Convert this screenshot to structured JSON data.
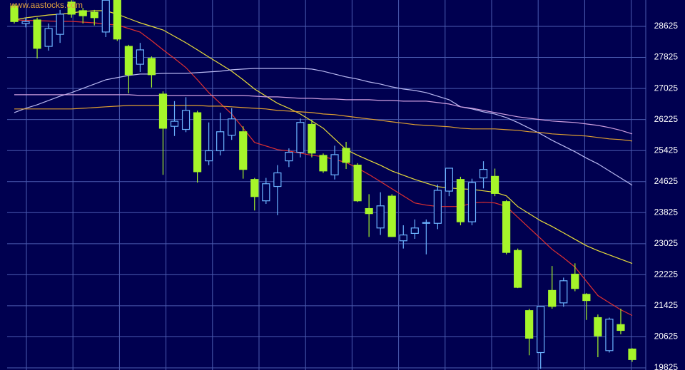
{
  "chart_data": {
    "type": "candlestick",
    "watermark": "www.aastocks.com",
    "categories": [
      null,
      null,
      null,
      null,
      null,
      null,
      null,
      null,
      null,
      null,
      null,
      null,
      null,
      null,
      null,
      null,
      null,
      null,
      null,
      null,
      null,
      null,
      null,
      null,
      null,
      null,
      null,
      null,
      null,
      null,
      null,
      null,
      null,
      null,
      null,
      null,
      null,
      null,
      null,
      null,
      null,
      null,
      null,
      null,
      null,
      null,
      null,
      null,
      null,
      null,
      null,
      null,
      null,
      null,
      null
    ],
    "open": [
      29150,
      28700,
      28790,
      28110,
      28420,
      29250,
      29030,
      28990,
      28480,
      29300,
      28110,
      27650,
      27800,
      26880,
      26050,
      25970,
      26400,
      25160,
      25420,
      25820,
      25910,
      24680,
      24130,
      24500,
      25160,
      25380,
      26100,
      25300,
      24800,
      25480,
      25050,
      23930,
      23430,
      24250,
      23100,
      23290,
      23550,
      23550,
      24380,
      24680,
      23590,
      24720,
      24760,
      24110,
      22850,
      21300,
      20220,
      21820,
      21500,
      22240,
      21720,
      21120,
      20270,
      20940,
      20310
    ],
    "high": [
      29200,
      28850,
      28850,
      28700,
      29050,
      29300,
      29100,
      29050,
      29300,
      29300,
      28150,
      28200,
      27850,
      26950,
      26700,
      26800,
      26450,
      26150,
      26400,
      26520,
      26050,
      24720,
      24720,
      25050,
      25480,
      26250,
      26220,
      25350,
      25550,
      25650,
      25100,
      24300,
      24350,
      24300,
      23500,
      23650,
      23650,
      24550,
      24980,
      24750,
      24700,
      25150,
      24960,
      24150,
      22900,
      21350,
      21420,
      22450,
      22150,
      22520,
      21750,
      21200,
      21120,
      21350,
      20330
    ],
    "low": [
      28700,
      28600,
      27800,
      28000,
      28200,
      28850,
      28700,
      28650,
      28350,
      28250,
      26900,
      27450,
      27050,
      24800,
      25800,
      25900,
      24600,
      25050,
      25300,
      25700,
      24700,
      23880,
      24050,
      23760,
      25000,
      25250,
      25250,
      24850,
      24680,
      24950,
      24100,
      23200,
      23250,
      23200,
      22900,
      23150,
      22750,
      23400,
      24250,
      23500,
      23500,
      24450,
      24250,
      22750,
      21880,
      20150,
      19800,
      21350,
      21400,
      21800,
      21060,
      20100,
      20220,
      20690,
      19980
    ],
    "close": [
      28750,
      28750,
      28060,
      28570,
      28940,
      28940,
      28900,
      28850,
      29300,
      28300,
      27380,
      28020,
      27380,
      26000,
      26180,
      26460,
      24880,
      25420,
      25910,
      26240,
      24940,
      24240,
      24570,
      24850,
      25380,
      26150,
      25360,
      24900,
      25320,
      25120,
      24130,
      23800,
      24000,
      23210,
      23250,
      23430,
      23570,
      24400,
      24970,
      23590,
      24600,
      24940,
      24320,
      22800,
      21900,
      20590,
      21410,
      21410,
      22070,
      21870,
      21560,
      20650,
      21080,
      20790,
      20040
    ],
    "up_color": "#6cb4ff",
    "down_color": "#a6f52a",
    "lines": [
      {
        "color": "#e03030",
        "values": [
          28790,
          28781,
          28772,
          28763,
          28754,
          28754,
          28735,
          28717,
          28680,
          28662,
          28570,
          28478,
          28258,
          28020,
          27799,
          27561,
          27249,
          26919,
          26643,
          26368,
          26001,
          25634,
          25542,
          25451,
          25414,
          25359,
          25304,
          25267,
          25194,
          25120,
          24973,
          24808,
          24625,
          24441,
          24258,
          24074,
          24019,
          23982,
          23982,
          23982,
          24074,
          24093,
          24074,
          23982,
          23707,
          23432,
          23157,
          22881,
          22661,
          22423,
          22056,
          21689,
          21505,
          21322,
          21175
        ]
      },
      {
        "color": "#e8dc3a",
        "values": [
          28790,
          28845,
          28882,
          28919,
          28937,
          28974,
          29010,
          29029,
          29029,
          28937,
          28827,
          28717,
          28625,
          28533,
          28368,
          28203,
          28020,
          27836,
          27653,
          27469,
          27249,
          27010,
          26827,
          26643,
          26515,
          26368,
          26185,
          26001,
          25726,
          25451,
          25304,
          25175,
          25047,
          24900,
          24790,
          24680,
          24588,
          24496,
          24460,
          24441,
          24423,
          24386,
          24350,
          24258,
          23982,
          23799,
          23615,
          23469,
          23304,
          23138,
          22973,
          22845,
          22735,
          22625,
          22515
        ]
      },
      {
        "color": "#b8b8f0",
        "values": [
          26405,
          26515,
          26607,
          26717,
          26827,
          26919,
          27029,
          27139,
          27249,
          27304,
          27359,
          27396,
          27396,
          27414,
          27414,
          27414,
          27432,
          27451,
          27469,
          27506,
          27524,
          27542,
          27542,
          27542,
          27542,
          27542,
          27524,
          27469,
          27396,
          27322,
          27267,
          27194,
          27139,
          27065,
          27010,
          26974,
          26919,
          26827,
          26735,
          26552,
          26497,
          26423,
          26368,
          26276,
          26148,
          26001,
          25854,
          25689,
          25542,
          25395,
          25230,
          25084,
          24900,
          24717,
          24533
        ]
      },
      {
        "color": "#d0a0e0",
        "values": [
          26863,
          26863,
          26863,
          26863,
          26863,
          26863,
          26863,
          26863,
          26863,
          26863,
          26863,
          26845,
          26845,
          26845,
          26845,
          26845,
          26845,
          26845,
          26845,
          26845,
          26845,
          26827,
          26808,
          26808,
          26790,
          26772,
          26772,
          26753,
          26753,
          26735,
          26735,
          26735,
          26717,
          26717,
          26698,
          26698,
          26698,
          26662,
          26625,
          26552,
          26515,
          26460,
          26405,
          26350,
          26295,
          26258,
          26221,
          26185,
          26166,
          26148,
          26111,
          26074,
          26019,
          25946,
          25854
        ]
      },
      {
        "color": "#e0a030",
        "values": [
          26497,
          26497,
          26497,
          26497,
          26497,
          26497,
          26515,
          26533,
          26552,
          26570,
          26588,
          26588,
          26588,
          26588,
          26588,
          26588,
          26588,
          26570,
          26570,
          26552,
          26533,
          26515,
          26497,
          26460,
          26442,
          26423,
          26405,
          26368,
          26350,
          26313,
          26276,
          26240,
          26203,
          26166,
          26130,
          26093,
          26074,
          26056,
          26038,
          26001,
          25983,
          25983,
          25983,
          25964,
          25946,
          25909,
          25891,
          25854,
          25836,
          25817,
          25799,
          25762,
          25726,
          25707,
          25671
        ]
      }
    ],
    "ylim": [
      19770,
      29305
    ],
    "yticks": [
      19825,
      20625,
      21425,
      22225,
      23025,
      23825,
      24625,
      25425,
      26225,
      27025,
      27825,
      28625
    ],
    "grid": true,
    "grid_color": "#4b5bb0"
  }
}
